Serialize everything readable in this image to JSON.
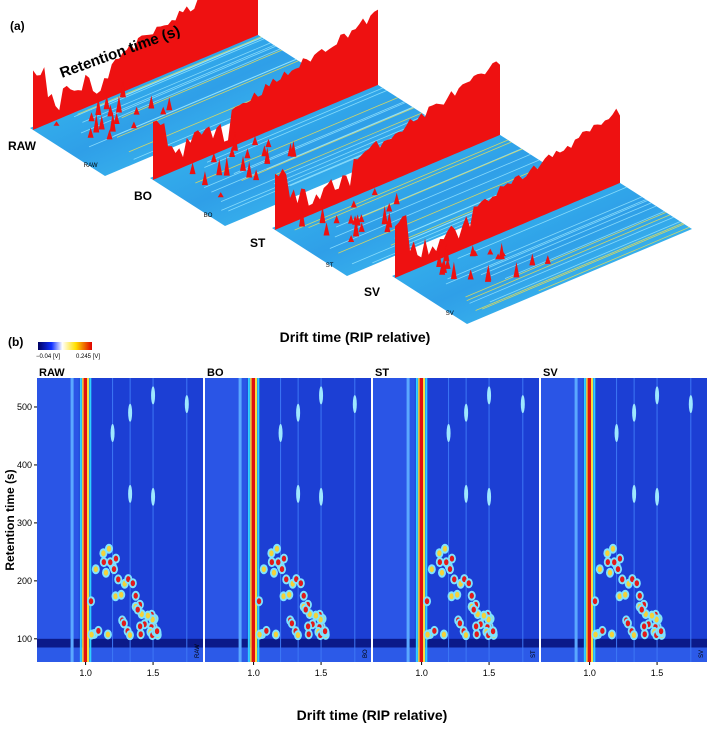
{
  "panel_a": {
    "label": "(a)",
    "y_label": "Retention time (s)",
    "x_label": "Drift time (RIP relative)",
    "samples": [
      "RAW",
      "BO",
      "ST",
      "SV"
    ]
  },
  "panel_b": {
    "label": "(b)",
    "colorbar_min": "−0.04 [V]",
    "colorbar_max": "0.245 [V]",
    "samples": [
      "RAW",
      "BO",
      "ST",
      "SV"
    ],
    "y_label": "Retention time (s)",
    "x_label": "Drift time (RIP relative)",
    "ylim": [
      60,
      550
    ],
    "yticks": [
      100,
      200,
      300,
      400,
      500
    ],
    "xlim": [
      0.64,
      1.87
    ],
    "xticks": [
      {
        "value": 1,
        "label": "1.0"
      },
      {
        "value": 1.5,
        "label": "1.5"
      }
    ]
  }
}
